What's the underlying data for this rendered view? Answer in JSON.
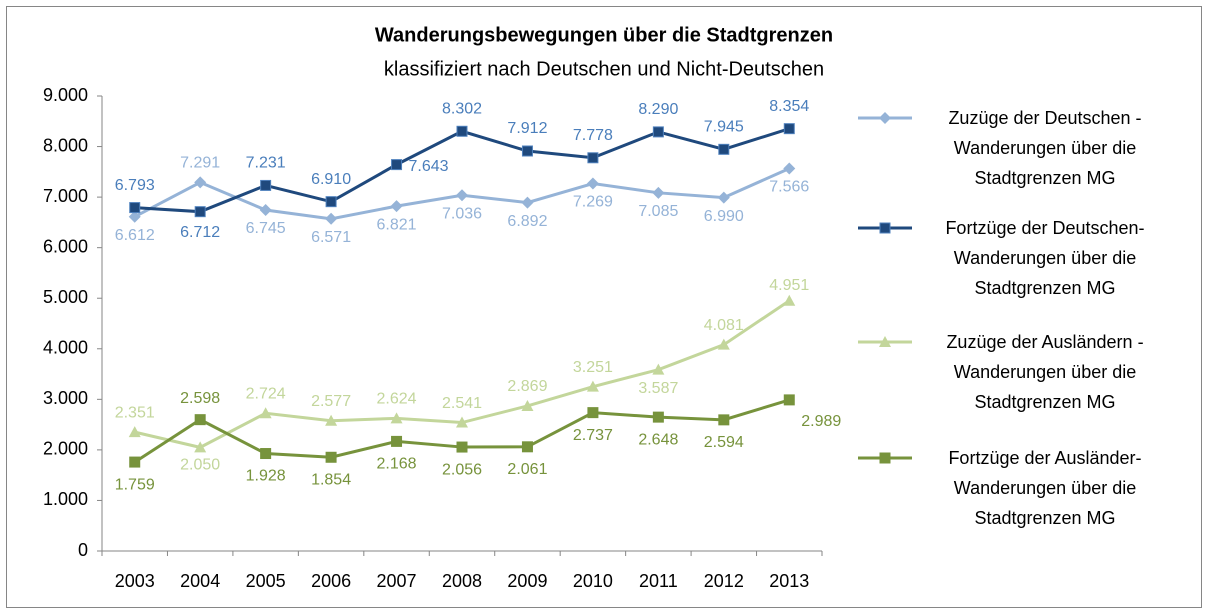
{
  "chart_data": {
    "type": "line",
    "title": "Wanderungsbewegungen über die Stadtgrenzen",
    "subtitle": "klassifiziert nach Deutschen und Nicht-Deutschen",
    "categories": [
      "2003",
      "2004",
      "2005",
      "2006",
      "2007",
      "2008",
      "2009",
      "2010",
      "2011",
      "2012",
      "2013"
    ],
    "ylim": [
      0,
      9000
    ],
    "yticks": [
      0,
      {
        "value": 1000,
        "label": "1.000"
      },
      {
        "value": 2000,
        "label": "2.000"
      },
      {
        "value": 3000,
        "label": "3.000"
      },
      {
        "value": 4000,
        "label": "4.000"
      },
      {
        "value": 5000,
        "label": "5.000"
      },
      {
        "value": 6000,
        "label": "6.000"
      },
      {
        "value": 7000,
        "label": "7.000"
      },
      {
        "value": 8000,
        "label": "8.000"
      },
      {
        "value": 9000,
        "label": "9.000"
      }
    ],
    "grid": false,
    "legend": "right",
    "series": [
      {
        "name": "Zuzüge der Deutschen - Wanderungen über die Stadtgrenzen MG",
        "color": "#95b3d7",
        "label_color": "#95b3d7",
        "marker": "diamond",
        "values": [
          6612,
          7291,
          6745,
          6571,
          6821,
          7036,
          6892,
          7269,
          7085,
          6990,
          7566
        ],
        "value_labels": [
          "6.612",
          "7.291",
          "6.745",
          "6.571",
          "6.821",
          "7.036",
          "6.892",
          "7.269",
          "7.085",
          "6.990",
          "7.566"
        ]
      },
      {
        "name": "Fortzüge der Deutschen- Wanderungen über die Stadtgrenzen MG",
        "color": "#1f497d",
        "label_color": "#4a7ebb",
        "marker": "square",
        "values": [
          6793,
          6712,
          7231,
          6910,
          7643,
          8302,
          7912,
          7778,
          8290,
          7945,
          8354
        ],
        "value_labels": [
          "6.793",
          "6.712",
          "7.231",
          "6.910",
          "7.643",
          "8.302",
          "7.912",
          "7.778",
          "8.290",
          "7.945",
          "8.354"
        ]
      },
      {
        "name": "Zuzüge der Ausländern - Wanderungen über die Stadtgrenzen MG",
        "color": "#c3d69b",
        "label_color": "#c3d69b",
        "marker": "triangle",
        "values": [
          2351,
          2050,
          2724,
          2577,
          2624,
          2541,
          2869,
          3251,
          3587,
          4081,
          4951
        ],
        "value_labels": [
          "2.351",
          "2.050",
          "2.724",
          "2.577",
          "2.624",
          "2.541",
          "2.869",
          "3.251",
          "3.587",
          "4.081",
          "4.951"
        ]
      },
      {
        "name": "Fortzüge der Ausländer- Wanderungen über die Stadtgrenzen MG",
        "color": "#77933c",
        "label_color": "#77933c",
        "marker": "square",
        "values": [
          1759,
          2598,
          1928,
          1854,
          2168,
          2056,
          2061,
          2737,
          2648,
          2594,
          2989
        ],
        "value_labels": [
          "1.759",
          "2.598",
          "1.928",
          "1.854",
          "2.168",
          "2.056",
          "2.061",
          "2.737",
          "2.648",
          "2.594",
          "2.989"
        ]
      }
    ]
  }
}
